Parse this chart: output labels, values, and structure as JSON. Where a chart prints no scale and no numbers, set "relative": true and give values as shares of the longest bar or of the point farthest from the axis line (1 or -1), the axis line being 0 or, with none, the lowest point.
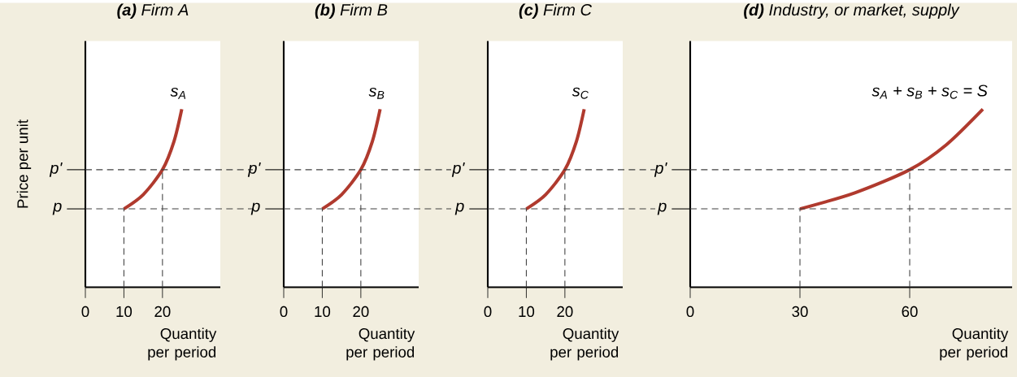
{
  "chart_data": [
    {
      "type": "line",
      "title": "**(a)** Firm A",
      "xlabel": "Quantity per period",
      "ylabel": "Price per unit",
      "relative": true,
      "xlim": [
        0,
        35
      ],
      "xticks": [
        0,
        10,
        20
      ],
      "legend": false,
      "series": [
        {
          "name": "s$_{A}$",
          "color": "#b03a2e",
          "x": [
            10,
            15,
            20,
            23,
            25
          ],
          "values": [
            0.44,
            0.52,
            0.66,
            0.82,
            1.0
          ]
        }
      ],
      "ref_lines": [
        {
          "axis": "y",
          "value": 0.44,
          "label": "p",
          "line_style": "dashed"
        },
        {
          "axis": "y",
          "value": 0.66,
          "label": "p'",
          "line_style": "dashed"
        },
        {
          "axis": "x",
          "value": 10,
          "line_style": "dashed"
        },
        {
          "axis": "x",
          "value": 20,
          "line_style": "dashed"
        }
      ]
    },
    {
      "type": "line",
      "title": "**(b)** Firm B",
      "xlabel": "Quantity per period",
      "relative": true,
      "xlim": [
        0,
        35
      ],
      "xticks": [
        0,
        10,
        20
      ],
      "legend": false,
      "series": [
        {
          "name": "s$_{B}$",
          "color": "#b03a2e",
          "x": [
            10,
            15,
            20,
            23,
            25
          ],
          "values": [
            0.44,
            0.52,
            0.66,
            0.82,
            1.0
          ]
        }
      ],
      "ref_lines": [
        {
          "axis": "y",
          "value": 0.44,
          "label": "p",
          "line_style": "dashed"
        },
        {
          "axis": "y",
          "value": 0.66,
          "label": "p'",
          "line_style": "dashed"
        },
        {
          "axis": "x",
          "value": 10,
          "line_style": "dashed"
        },
        {
          "axis": "x",
          "value": 20,
          "line_style": "dashed"
        }
      ]
    },
    {
      "type": "line",
      "title": "**(c)** Firm C",
      "xlabel": "Quantity per period",
      "relative": true,
      "xlim": [
        0,
        35
      ],
      "xticks": [
        0,
        10,
        20
      ],
      "legend": false,
      "series": [
        {
          "name": "s$_{C}$",
          "color": "#b03a2e",
          "x": [
            10,
            15,
            20,
            23,
            25
          ],
          "values": [
            0.44,
            0.52,
            0.66,
            0.82,
            1.0
          ]
        }
      ],
      "ref_lines": [
        {
          "axis": "y",
          "value": 0.44,
          "label": "p",
          "line_style": "dashed"
        },
        {
          "axis": "y",
          "value": 0.66,
          "label": "p'",
          "line_style": "dashed"
        },
        {
          "axis": "x",
          "value": 10,
          "line_style": "dashed"
        },
        {
          "axis": "x",
          "value": 20,
          "line_style": "dashed"
        }
      ]
    },
    {
      "type": "line",
      "title": "**(d)** Industry, or market, supply",
      "xlabel": "Quantity per period",
      "relative": true,
      "xlim": [
        0,
        88
      ],
      "xticks": [
        0,
        30,
        60
      ],
      "legend": false,
      "series": [
        {
          "name": "s$_{A}$ + s$_{B}$ + s$_{C}$ = S",
          "color": "#b03a2e",
          "x": [
            30,
            45,
            60,
            70,
            80
          ],
          "values": [
            0.44,
            0.53,
            0.66,
            0.8,
            1.0
          ]
        }
      ],
      "ref_lines": [
        {
          "axis": "y",
          "value": 0.44,
          "label": "p",
          "line_style": "dashed"
        },
        {
          "axis": "y",
          "value": 0.66,
          "label": "p'",
          "line_style": "dashed"
        },
        {
          "axis": "x",
          "value": 30,
          "line_style": "dashed"
        },
        {
          "axis": "x",
          "value": 60,
          "line_style": "dashed"
        }
      ]
    }
  ]
}
